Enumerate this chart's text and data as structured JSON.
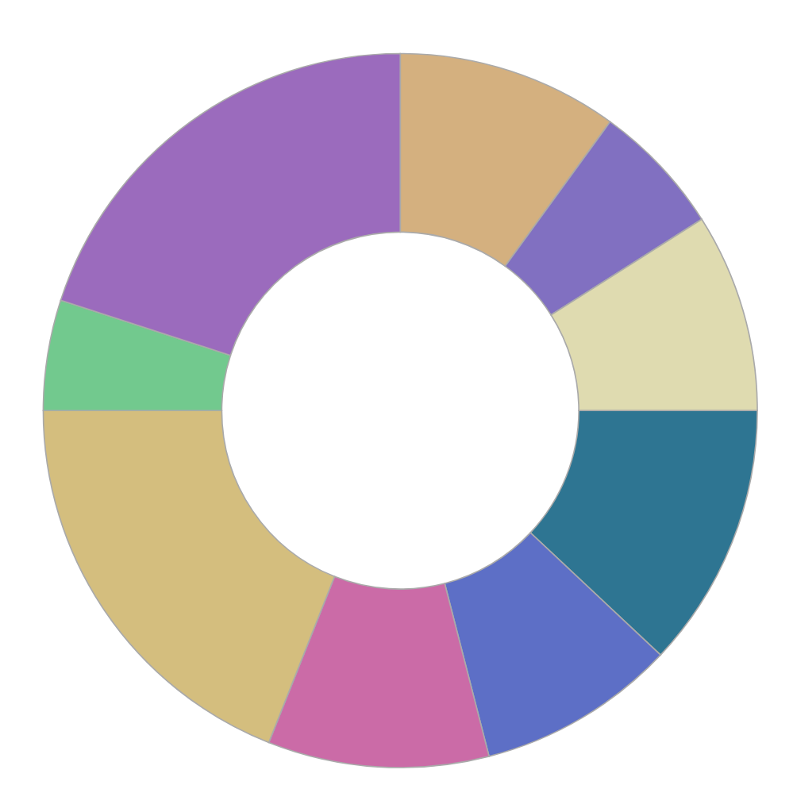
{
  "chart_data": {
    "type": "donut",
    "categories": [
      null,
      null,
      null,
      null,
      null,
      null,
      null,
      null,
      null
    ],
    "values": [
      10,
      6,
      9,
      12,
      9,
      10,
      19,
      5,
      20
    ],
    "colors": [
      "#d4b07f",
      "#8170c1",
      "#dfdbb0",
      "#2e7592",
      "#5d6fc6",
      "#cb6ba7",
      "#d4be7e",
      "#72c98e",
      "#9b6bbd"
    ]
  }
}
